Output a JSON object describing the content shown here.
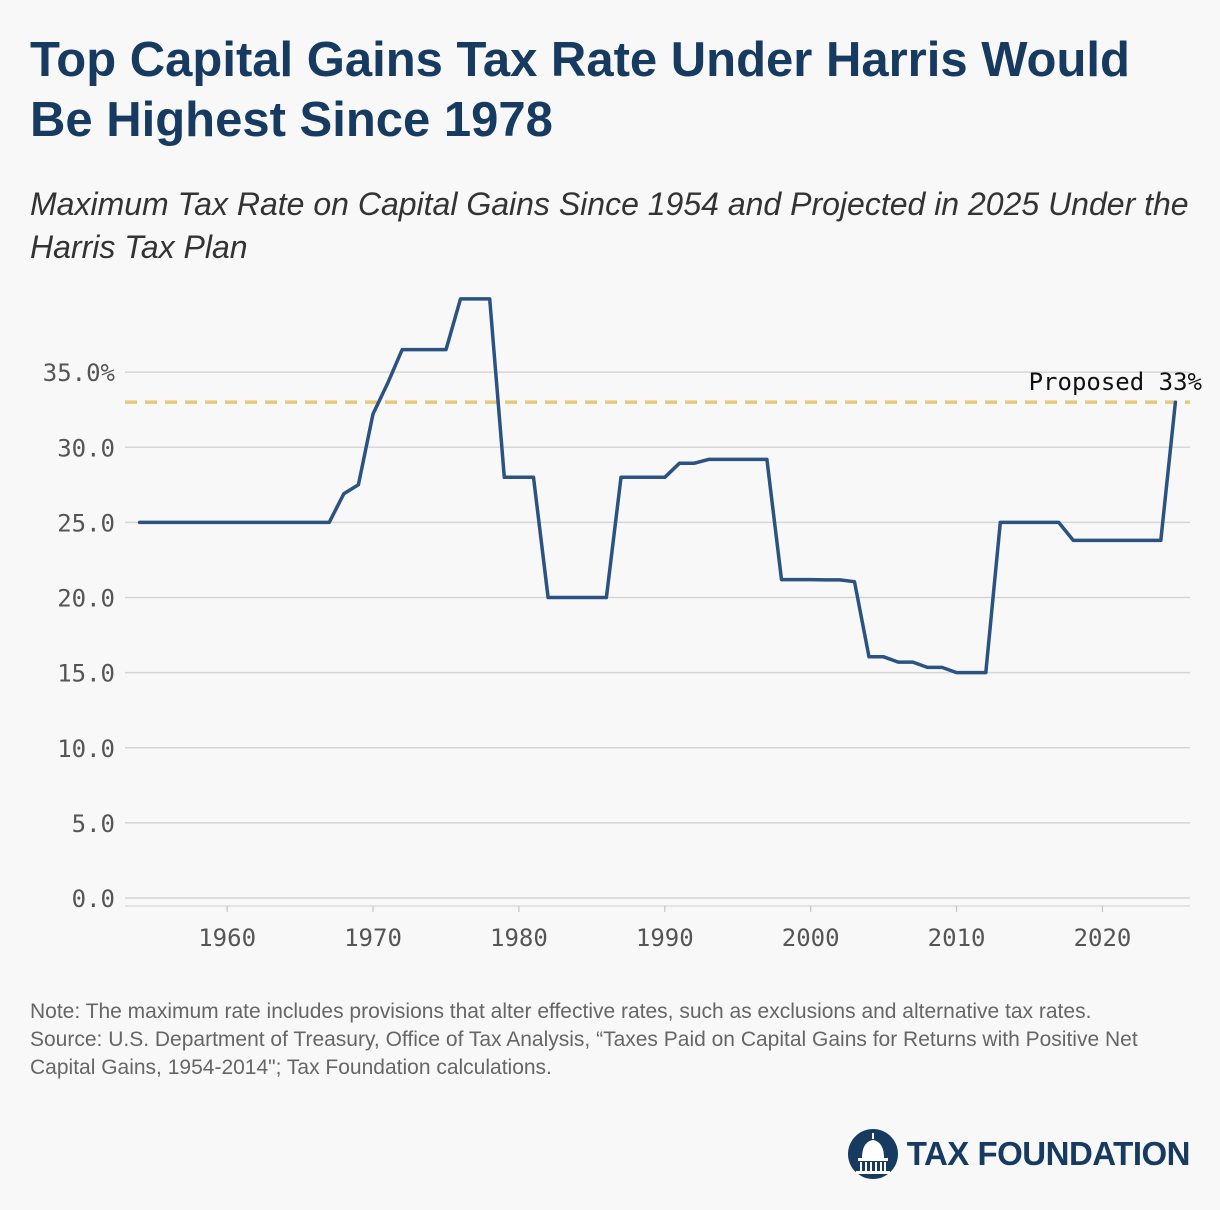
{
  "header": {
    "title": "Top Capital Gains Tax Rate Under Harris Would Be Highest Since 1978",
    "subtitle": "Maximum Tax Rate on Capital Gains Since 1954 and Projected in 2025 Under the Harris Tax Plan"
  },
  "chart_data": {
    "type": "line",
    "title": "Top Capital Gains Tax Rate Under Harris Would Be Highest Since 1978",
    "subtitle": "Maximum Tax Rate on Capital Gains Since 1954 and Projected in 2025 Under the Harris Tax Plan",
    "xlabel": "",
    "ylabel": "",
    "xlim": [
      1953,
      2026
    ],
    "ylim": [
      0,
      40
    ],
    "x_ticks": [
      1960,
      1970,
      1980,
      1990,
      2000,
      2010,
      2020
    ],
    "y_ticks": [
      0,
      5,
      10,
      15,
      20,
      25,
      30,
      35
    ],
    "y_tick_labels": [
      "0.0",
      "5.0",
      "10.0",
      "15.0",
      "20.0",
      "25.0",
      "30.0",
      "35.0%"
    ],
    "grid": "horizontal",
    "line_color": "#2c5282",
    "series": [
      {
        "name": "",
        "x": [
          1954,
          1955,
          1956,
          1957,
          1958,
          1959,
          1960,
          1961,
          1962,
          1963,
          1964,
          1965,
          1966,
          1967,
          1968,
          1969,
          1970,
          1971,
          1972,
          1973,
          1974,
          1975,
          1976,
          1977,
          1978,
          1979,
          1980,
          1981,
          1982,
          1983,
          1984,
          1985,
          1986,
          1987,
          1988,
          1989,
          1990,
          1991,
          1992,
          1993,
          1994,
          1995,
          1996,
          1997,
          1998,
          1999,
          2000,
          2001,
          2002,
          2003,
          2004,
          2005,
          2006,
          2007,
          2008,
          2009,
          2010,
          2011,
          2012,
          2013,
          2014,
          2015,
          2016,
          2017,
          2018,
          2019,
          2020,
          2021,
          2022,
          2023,
          2024,
          2025
        ],
        "values": [
          25,
          25,
          25,
          25,
          25,
          25,
          25,
          25,
          25,
          25,
          25,
          25,
          25,
          25,
          26.9,
          27.5,
          32.21,
          34.25,
          36.5,
          36.5,
          36.5,
          36.5,
          39.875,
          39.875,
          39.875,
          28,
          28,
          28,
          20,
          20,
          20,
          20,
          20,
          28,
          28,
          28,
          28,
          28.93,
          28.93,
          29.19,
          29.19,
          29.19,
          29.19,
          29.19,
          21.19,
          21.19,
          21.19,
          21.17,
          21.17,
          21.05,
          16.05,
          16.05,
          15.7,
          15.7,
          15.35,
          15.35,
          15,
          15,
          15,
          25.0,
          25.0,
          25.0,
          25.0,
          25.0,
          23.8,
          23.8,
          23.8,
          23.8,
          23.8,
          23.8,
          23.8,
          33
        ]
      }
    ],
    "reference_line": {
      "value": 33,
      "label": "Proposed 33%",
      "color": "#e6c97a"
    }
  },
  "notes": {
    "note": "Note: The maximum rate includes provisions that alter effective rates, such as exclusions and alternative tax rates.",
    "source": "Source: U.S. Department of Treasury, Office of Tax Analysis, “Taxes Paid on Capital Gains for Returns with Positive Net Capital Gains, 1954-2014\"; Tax Foundation calculations."
  },
  "logo": {
    "text": "TAX FOUNDATION",
    "icon": "capitol-dome-icon",
    "color": "#173a60"
  }
}
